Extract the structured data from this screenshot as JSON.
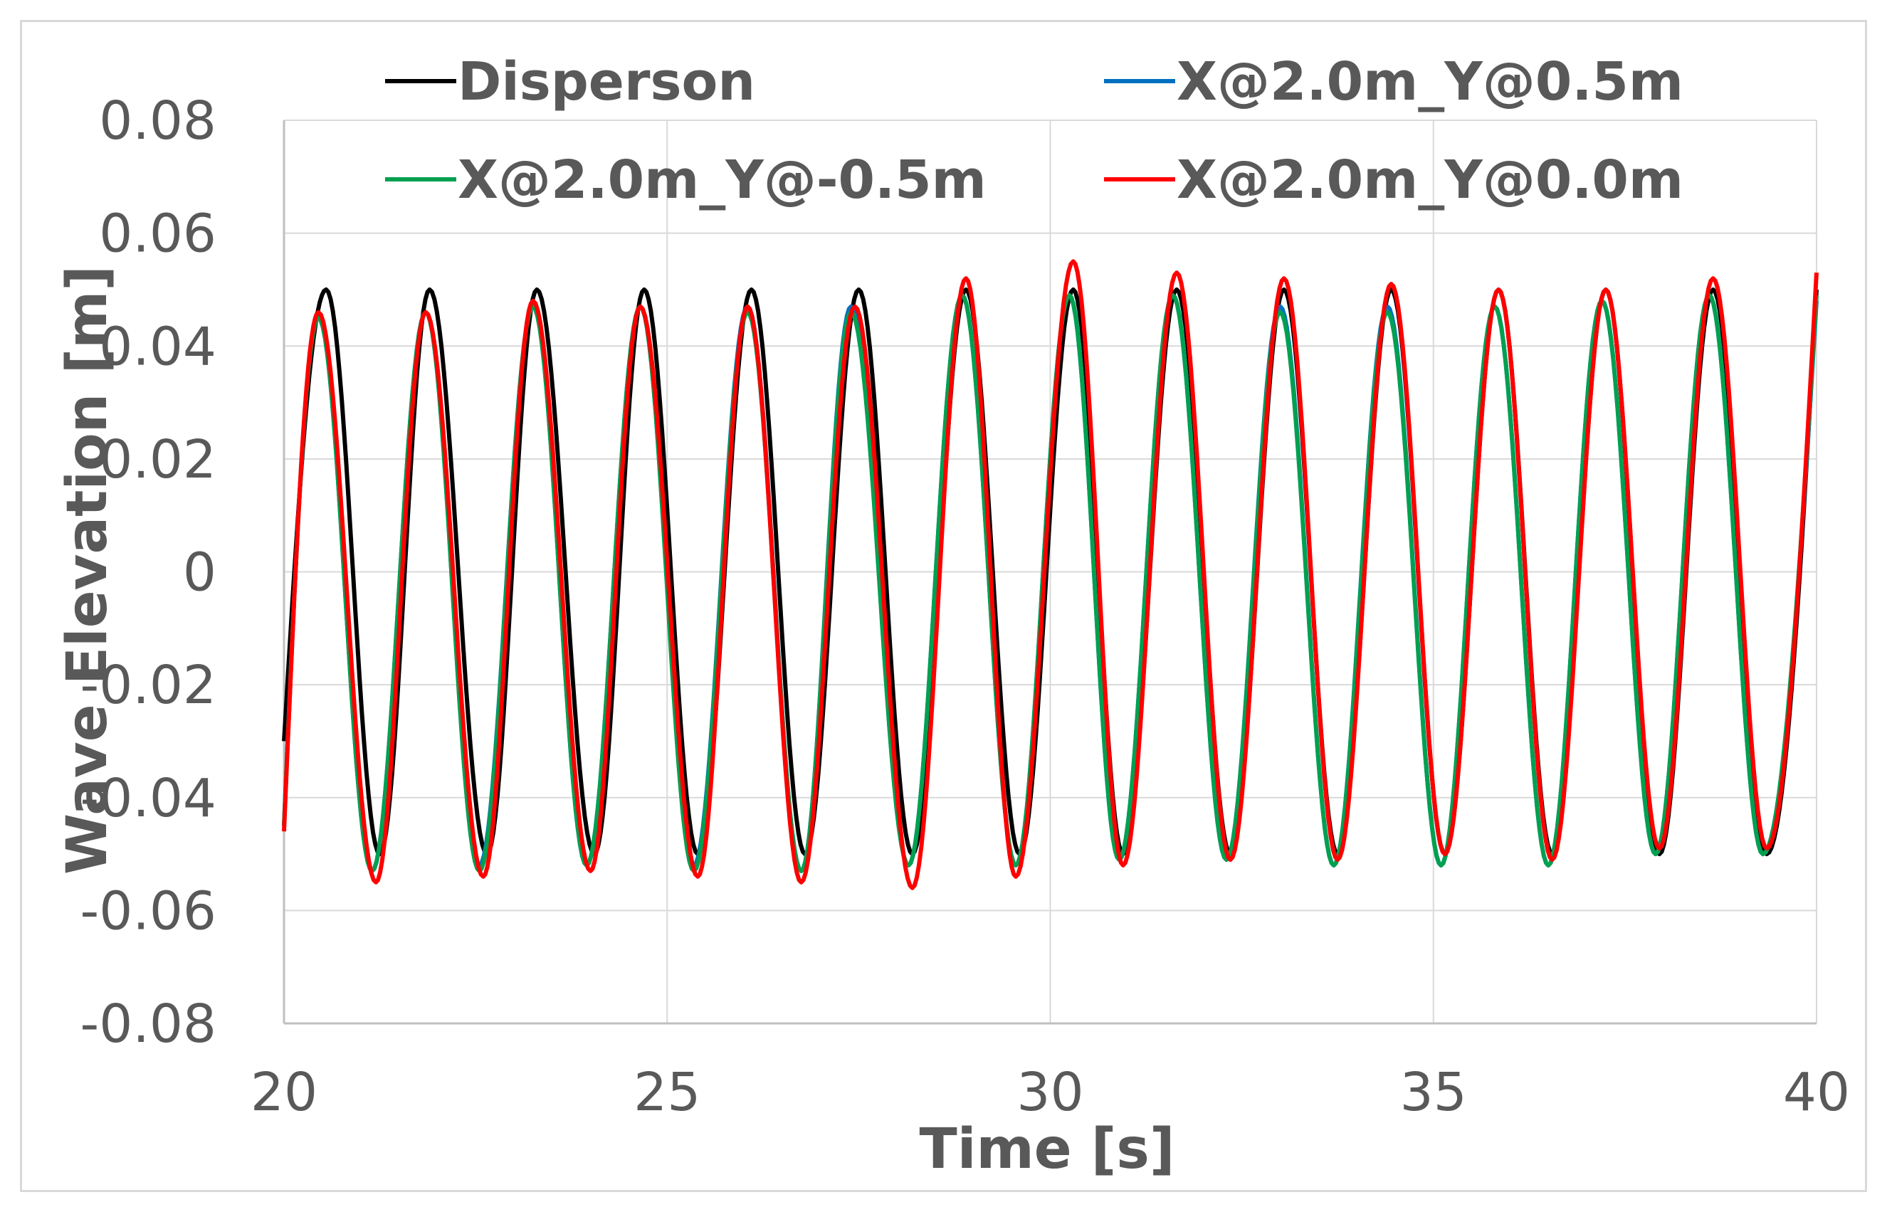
{
  "chart_data": {
    "type": "line",
    "title": "",
    "xlabel": "Time [s]",
    "ylabel": "Wave Elevation [m]",
    "xlim": [
      20,
      40
    ],
    "ylim": [
      -0.08,
      0.08
    ],
    "xticks": [
      20,
      25,
      30,
      35,
      40
    ],
    "xtick_labels": [
      "20",
      "25",
      "30",
      "35",
      "40"
    ],
    "yticks": [
      -0.08,
      -0.06,
      -0.04,
      -0.02,
      0,
      0.02,
      0.04,
      0.06,
      0.08
    ],
    "ytick_labels": [
      "-0.08",
      "-0.06",
      "-0.04",
      "-0.02",
      "0",
      "0.02",
      "0.04",
      "0.06",
      "0.08"
    ],
    "grid": true,
    "legend_position": "top",
    "series": [
      {
        "name": "Disperson",
        "color": "#000000",
        "crests": [
          [
            20.55,
            0.05
          ],
          [
            21.9,
            0.05
          ],
          [
            23.3,
            0.05
          ],
          [
            24.7,
            0.05
          ],
          [
            26.1,
            0.05
          ],
          [
            27.5,
            0.05
          ],
          [
            28.9,
            0.05
          ],
          [
            30.3,
            0.05
          ],
          [
            31.65,
            0.05
          ],
          [
            33.05,
            0.05
          ],
          [
            34.45,
            0.05
          ],
          [
            35.85,
            0.05
          ],
          [
            37.25,
            0.05
          ],
          [
            38.65,
            0.05
          ]
        ],
        "troughs": [
          [
            21.25,
            -0.05
          ],
          [
            22.65,
            -0.05
          ],
          [
            24.05,
            -0.05
          ],
          [
            25.4,
            -0.05
          ],
          [
            26.8,
            -0.05
          ],
          [
            28.2,
            -0.05
          ],
          [
            29.6,
            -0.05
          ],
          [
            30.95,
            -0.05
          ],
          [
            32.35,
            -0.05
          ],
          [
            33.75,
            -0.05
          ],
          [
            35.15,
            -0.05
          ],
          [
            36.55,
            -0.05
          ],
          [
            37.95,
            -0.05
          ],
          [
            39.35,
            -0.05
          ]
        ],
        "start": [
          20.0,
          -0.03
        ],
        "end": [
          40.0,
          0.05
        ]
      },
      {
        "name": "X@2.0m_Y@0.5m",
        "color": "#0070c0",
        "crests": [
          [
            20.45,
            0.045
          ],
          [
            21.85,
            0.046
          ],
          [
            23.25,
            0.047
          ],
          [
            24.65,
            0.047
          ],
          [
            26.05,
            0.047
          ],
          [
            27.4,
            0.047
          ],
          [
            28.85,
            0.049
          ],
          [
            30.25,
            0.049
          ],
          [
            31.6,
            0.049
          ],
          [
            33.0,
            0.047
          ],
          [
            34.4,
            0.047
          ],
          [
            35.8,
            0.047
          ],
          [
            37.2,
            0.048
          ],
          [
            38.6,
            0.049
          ]
        ],
        "troughs": [
          [
            21.15,
            -0.053
          ],
          [
            22.55,
            -0.052
          ],
          [
            23.95,
            -0.052
          ],
          [
            25.35,
            -0.052
          ],
          [
            26.75,
            -0.053
          ],
          [
            28.15,
            -0.052
          ],
          [
            29.55,
            -0.052
          ],
          [
            30.9,
            -0.051
          ],
          [
            32.3,
            -0.051
          ],
          [
            33.7,
            -0.052
          ],
          [
            35.1,
            -0.052
          ],
          [
            36.5,
            -0.052
          ],
          [
            37.9,
            -0.05
          ],
          [
            39.3,
            -0.05
          ]
        ],
        "start": [
          20.0,
          -0.045
        ],
        "end": [
          40.0,
          0.048
        ]
      },
      {
        "name": "X@2.0m_Y@-0.5m",
        "color": "#00a050",
        "crests": [
          [
            20.45,
            0.045
          ],
          [
            21.85,
            0.046
          ],
          [
            23.25,
            0.047
          ],
          [
            24.65,
            0.047
          ],
          [
            26.05,
            0.046
          ],
          [
            27.4,
            0.046
          ],
          [
            28.85,
            0.049
          ],
          [
            30.25,
            0.049
          ],
          [
            31.6,
            0.049
          ],
          [
            33.0,
            0.046
          ],
          [
            34.4,
            0.046
          ],
          [
            35.8,
            0.047
          ],
          [
            37.2,
            0.048
          ],
          [
            38.6,
            0.049
          ]
        ],
        "troughs": [
          [
            21.15,
            -0.053
          ],
          [
            22.55,
            -0.053
          ],
          [
            23.95,
            -0.052
          ],
          [
            25.35,
            -0.053
          ],
          [
            26.75,
            -0.053
          ],
          [
            28.15,
            -0.052
          ],
          [
            29.55,
            -0.052
          ],
          [
            30.9,
            -0.051
          ],
          [
            32.3,
            -0.051
          ],
          [
            33.7,
            -0.052
          ],
          [
            35.1,
            -0.052
          ],
          [
            36.5,
            -0.052
          ],
          [
            37.9,
            -0.05
          ],
          [
            39.3,
            -0.05
          ]
        ],
        "start": [
          20.0,
          -0.045
        ],
        "end": [
          40.0,
          0.049
        ]
      },
      {
        "name": "X@2.0m_Y@0.0m",
        "color": "#ff0000",
        "crests": [
          [
            20.45,
            0.046
          ],
          [
            21.85,
            0.046
          ],
          [
            23.25,
            0.048
          ],
          [
            24.65,
            0.047
          ],
          [
            26.05,
            0.047
          ],
          [
            27.45,
            0.047
          ],
          [
            28.9,
            0.052
          ],
          [
            30.3,
            0.055
          ],
          [
            31.65,
            0.053
          ],
          [
            33.05,
            0.052
          ],
          [
            34.45,
            0.051
          ],
          [
            35.85,
            0.05
          ],
          [
            37.25,
            0.05
          ],
          [
            38.65,
            0.052
          ]
        ],
        "troughs": [
          [
            21.2,
            -0.055
          ],
          [
            22.6,
            -0.054
          ],
          [
            24.0,
            -0.053
          ],
          [
            25.4,
            -0.054
          ],
          [
            26.75,
            -0.055
          ],
          [
            28.2,
            -0.056
          ],
          [
            29.55,
            -0.054
          ],
          [
            30.95,
            -0.052
          ],
          [
            32.35,
            -0.051
          ],
          [
            33.75,
            -0.051
          ],
          [
            35.15,
            -0.05
          ],
          [
            36.55,
            -0.051
          ],
          [
            37.95,
            -0.049
          ],
          [
            39.35,
            -0.049
          ]
        ],
        "start": [
          20.0,
          -0.046
        ],
        "end": [
          40.0,
          0.053
        ]
      }
    ]
  }
}
